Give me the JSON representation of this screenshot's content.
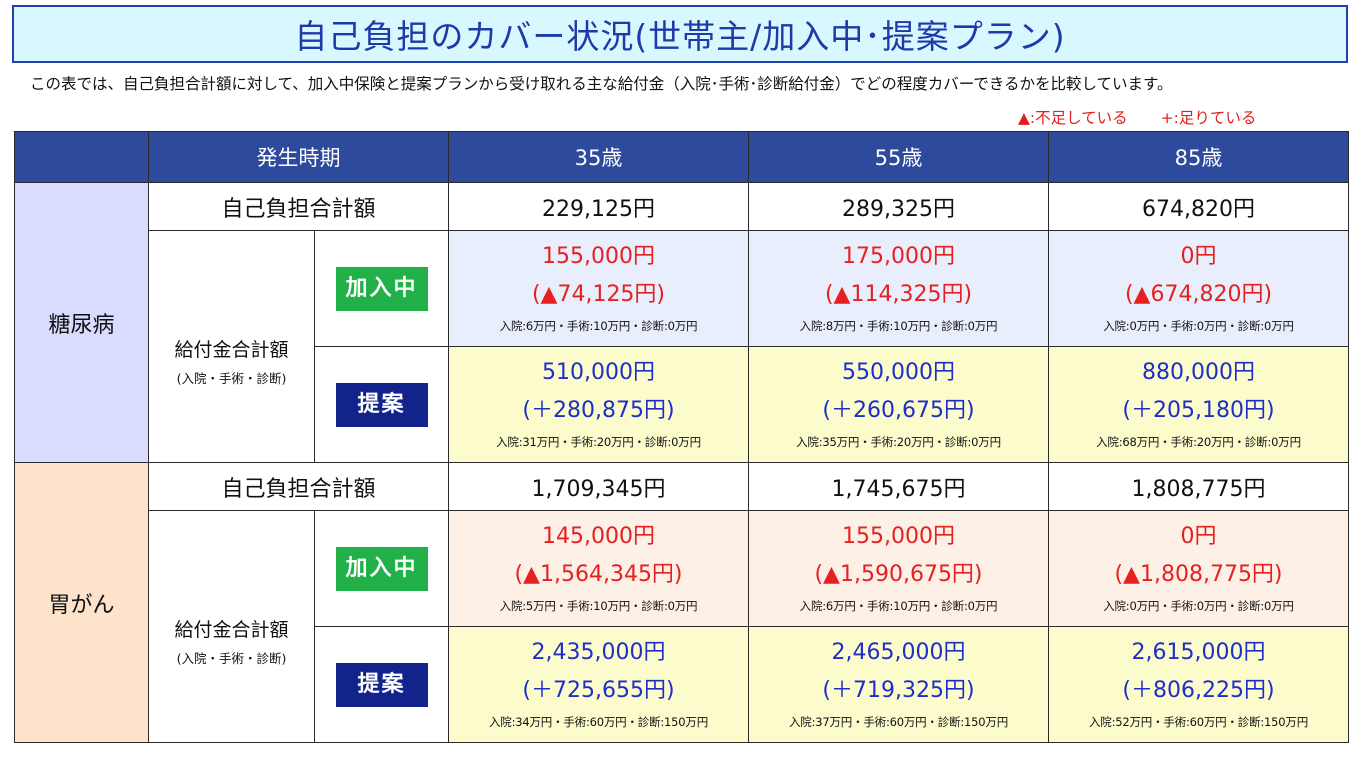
{
  "title": "自己負担のカバー状況(世帯主/加入中･提案プラン)",
  "description": "この表では、自己負担合計額に対して、加入中保険と提案プランから受け取れる主な給付金（入院･手術･診断給付金）でどの程度カバーできるかを比較しています。",
  "legend": {
    "shortage": "▲:不足している",
    "enough": "+:足りている"
  },
  "header": {
    "period_label": "発生時期",
    "ages": [
      "35歳",
      "55歳",
      "85歳"
    ]
  },
  "labels": {
    "self_pay_total": "自己負担合計額",
    "benefit_total": "給付金合計額",
    "benefit_sub": "(入院・手術・診断)",
    "current": "加入中",
    "proposal": "提案"
  },
  "diseases": [
    {
      "name": "糖尿病",
      "self_pay": [
        "229,125円",
        "289,325円",
        "674,820円"
      ],
      "current": {
        "amounts": [
          "155,000円",
          "175,000円",
          "0円"
        ],
        "diffs": [
          "(▲74,125円)",
          "(▲114,325円)",
          "(▲674,820円)"
        ],
        "details": [
          "入院:6万円・手術:10万円・診断:0万円",
          "入院:8万円・手術:10万円・診断:0万円",
          "入院:0万円・手術:0万円・診断:0万円"
        ]
      },
      "proposal": {
        "amounts": [
          "510,000円",
          "550,000円",
          "880,000円"
        ],
        "diffs": [
          "(＋280,875円)",
          "(＋260,675円)",
          "(＋205,180円)"
        ],
        "details": [
          "入院:31万円・手術:20万円・診断:0万円",
          "入院:35万円・手術:20万円・診断:0万円",
          "入院:68万円・手術:20万円・診断:0万円"
        ]
      }
    },
    {
      "name": "胃がん",
      "self_pay": [
        "1,709,345円",
        "1,745,675円",
        "1,808,775円"
      ],
      "current": {
        "amounts": [
          "145,000円",
          "155,000円",
          "0円"
        ],
        "diffs": [
          "(▲1,564,345円)",
          "(▲1,590,675円)",
          "(▲1,808,775円)"
        ],
        "details": [
          "入院:5万円・手術:10万円・診断:0万円",
          "入院:6万円・手術:10万円・診断:0万円",
          "入院:0万円・手術:0万円・診断:0万円"
        ]
      },
      "proposal": {
        "amounts": [
          "2,435,000円",
          "2,465,000円",
          "2,615,000円"
        ],
        "diffs": [
          "(＋725,655円)",
          "(＋719,325円)",
          "(＋806,225円)"
        ],
        "details": [
          "入院:34万円・手術:60万円・診断:150万円",
          "入院:37万円・手術:60万円・診断:150万円",
          "入院:52万円・手術:60万円・診断:150万円"
        ]
      }
    }
  ],
  "colors": {
    "shortage": "#e62020",
    "enough": "#1e2ec8",
    "header": "#2e4a9c",
    "current_badge": "#22b048",
    "proposal_badge": "#12248c"
  }
}
